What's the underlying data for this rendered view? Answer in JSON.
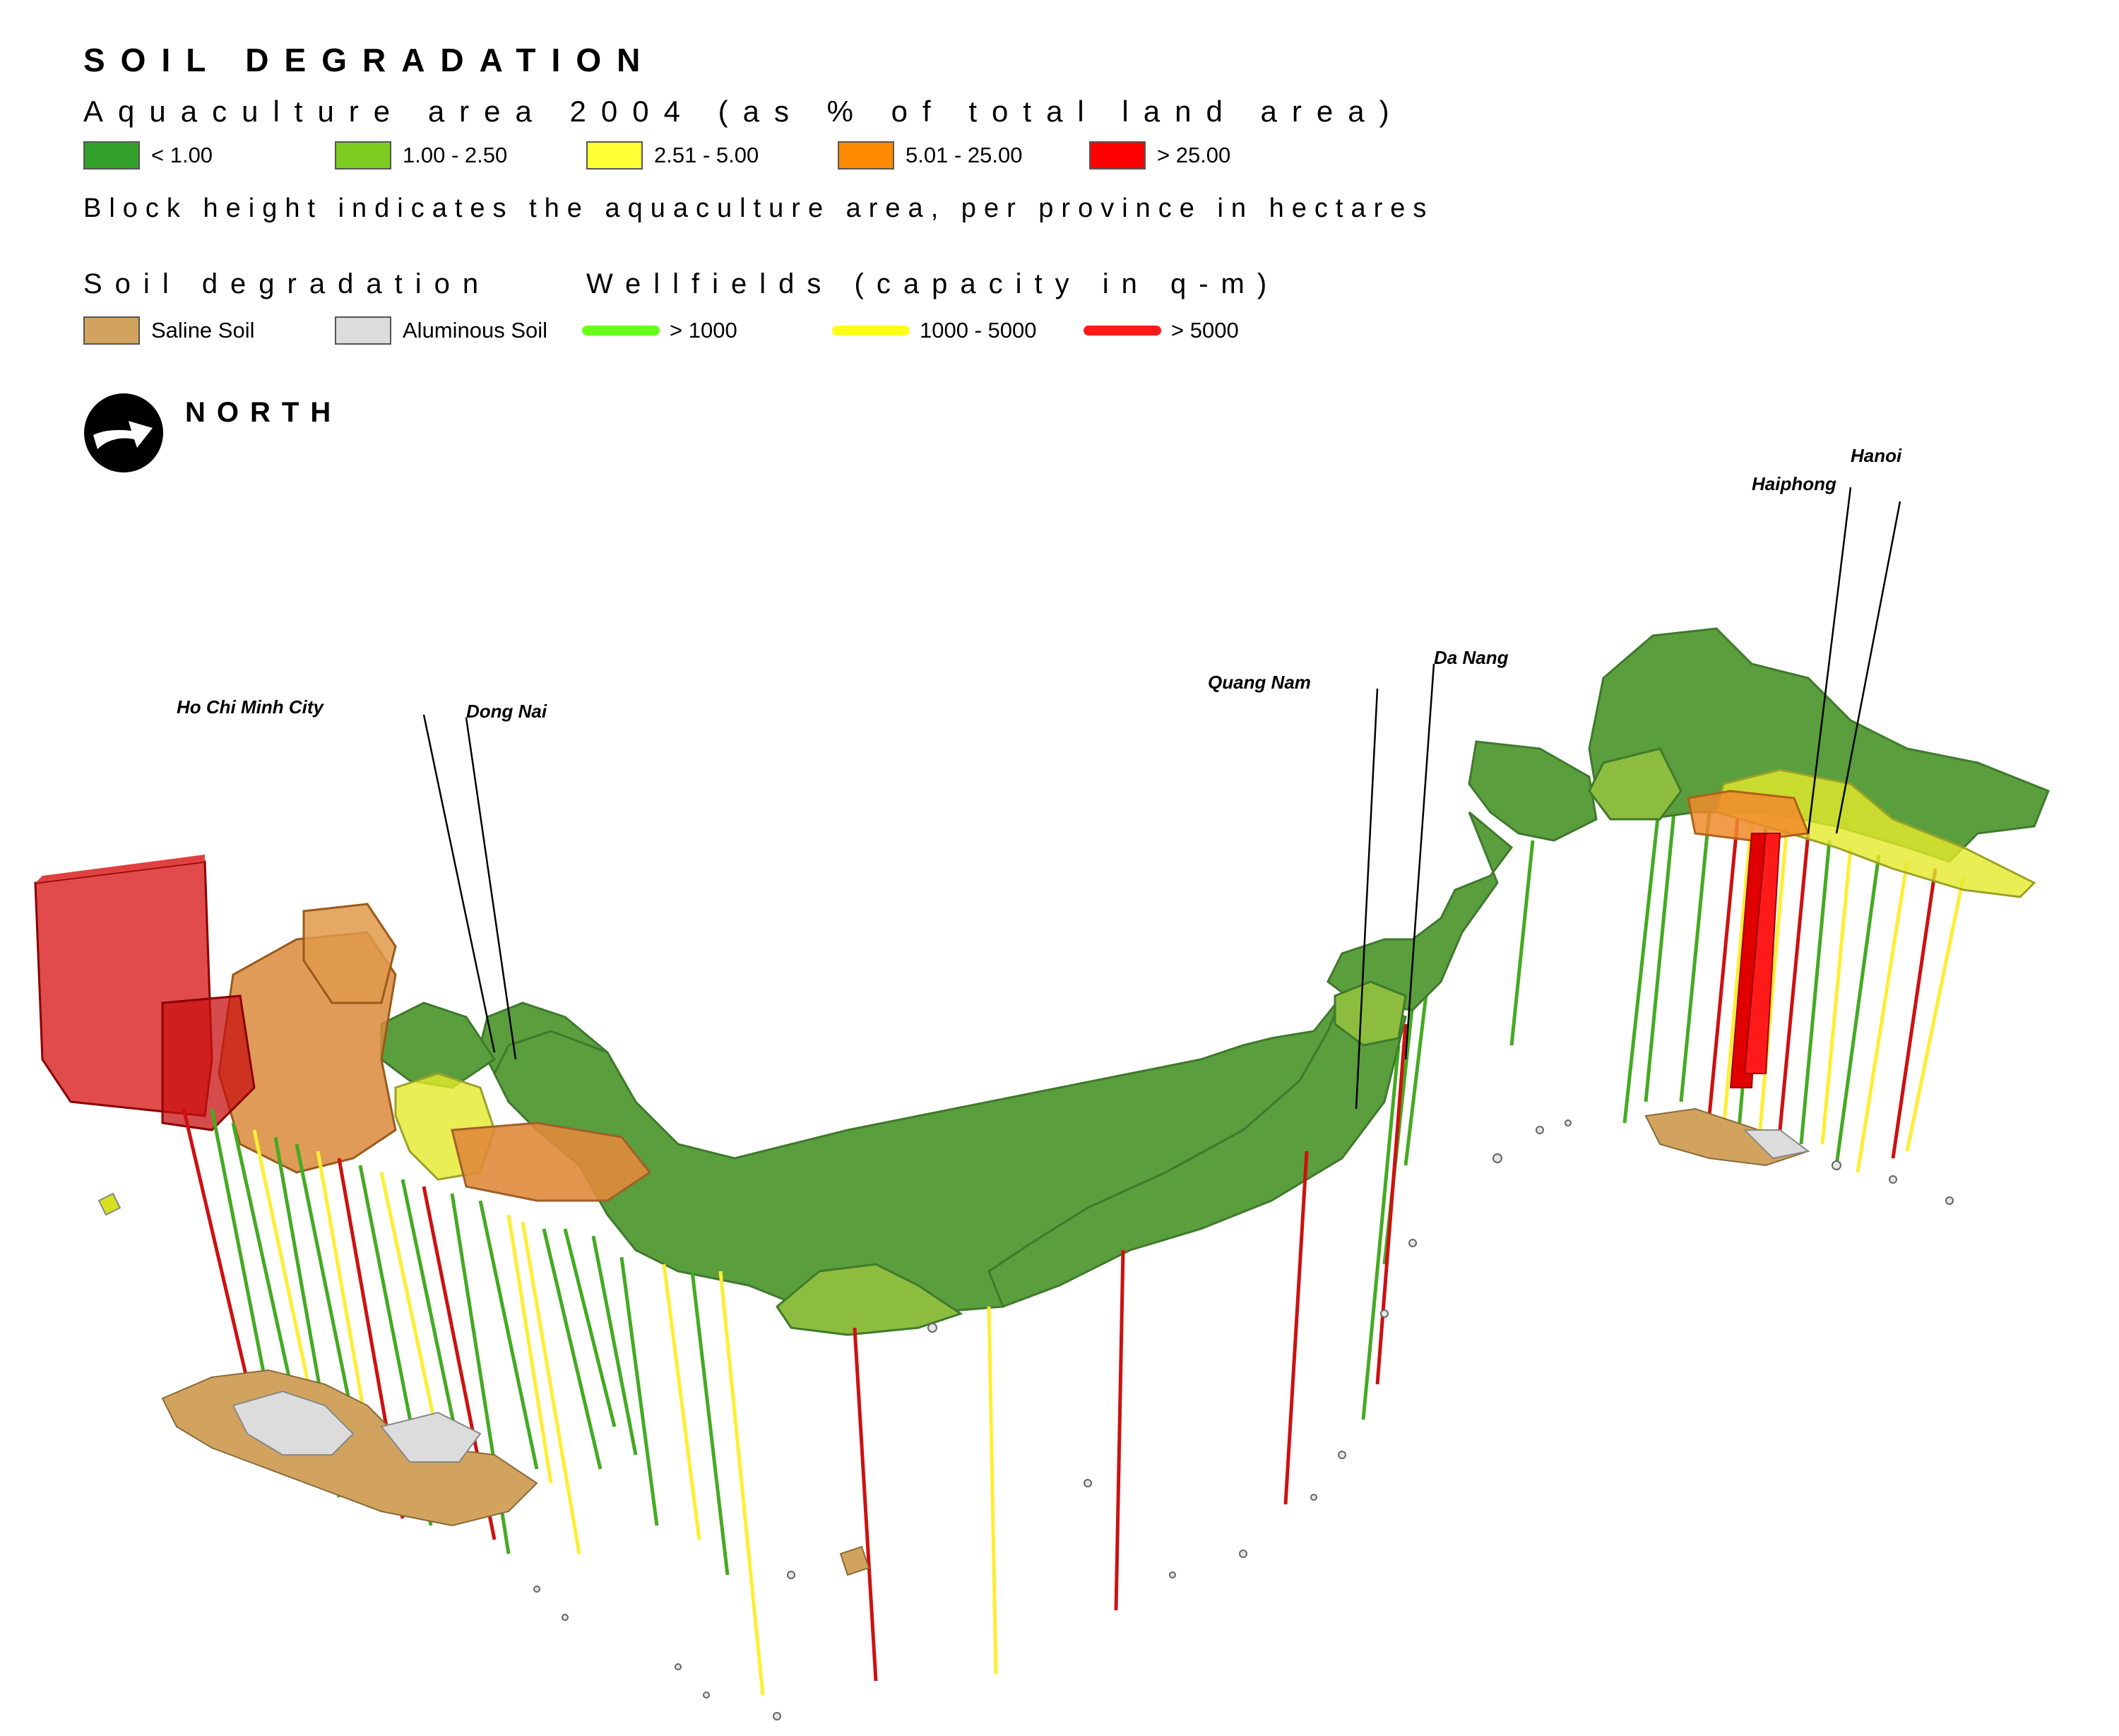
{
  "header": {
    "title": "SOIL DEGRADATION",
    "subtitle": "Aquaculture area 2004 (as % of total land area)",
    "note": "Block height indicates the aquaculture area, per province in hectares"
  },
  "aquaculture_legend": [
    {
      "label": "< 1.00",
      "color": "#33a02c"
    },
    {
      "label": "1.00 - 2.50",
      "color": "#7ccd1f"
    },
    {
      "label": "2.51 - 5.00",
      "color": "#ffff33"
    },
    {
      "label": "5.01 - 25.00",
      "color": "#ff8a00"
    },
    {
      "label": "> 25.00",
      "color": "#ff0000"
    }
  ],
  "soil_legend": {
    "title": "Soil degradation",
    "items": [
      {
        "label": "Saline Soil",
        "color": "#d2a35e"
      },
      {
        "label": "Aluminous Soil",
        "color": "#dcdcdc"
      }
    ]
  },
  "wellfield_legend": {
    "title": "Wellfields (capacity in q-m)",
    "items": [
      {
        "label": "> 1000",
        "color": "#66ff1a"
      },
      {
        "label": "1000 - 5000",
        "color": "#ffff1a"
      },
      {
        "label": "> 5000",
        "color": "#ff1a1a"
      }
    ]
  },
  "north": {
    "label": "NORTH",
    "icon": "north-arrow-icon"
  },
  "places": {
    "hcmc": "Ho Chi Minh City",
    "dongnai": "Dong Nai",
    "quangnam": "Quang Nam",
    "danang": "Da Nang",
    "haiphong": "Haiphong",
    "hanoi": "Hanoi"
  },
  "colors": {
    "land": "#5a9e3e",
    "land_stroke": "#3f7a2c",
    "light_green": "#8dbd3e"
  }
}
